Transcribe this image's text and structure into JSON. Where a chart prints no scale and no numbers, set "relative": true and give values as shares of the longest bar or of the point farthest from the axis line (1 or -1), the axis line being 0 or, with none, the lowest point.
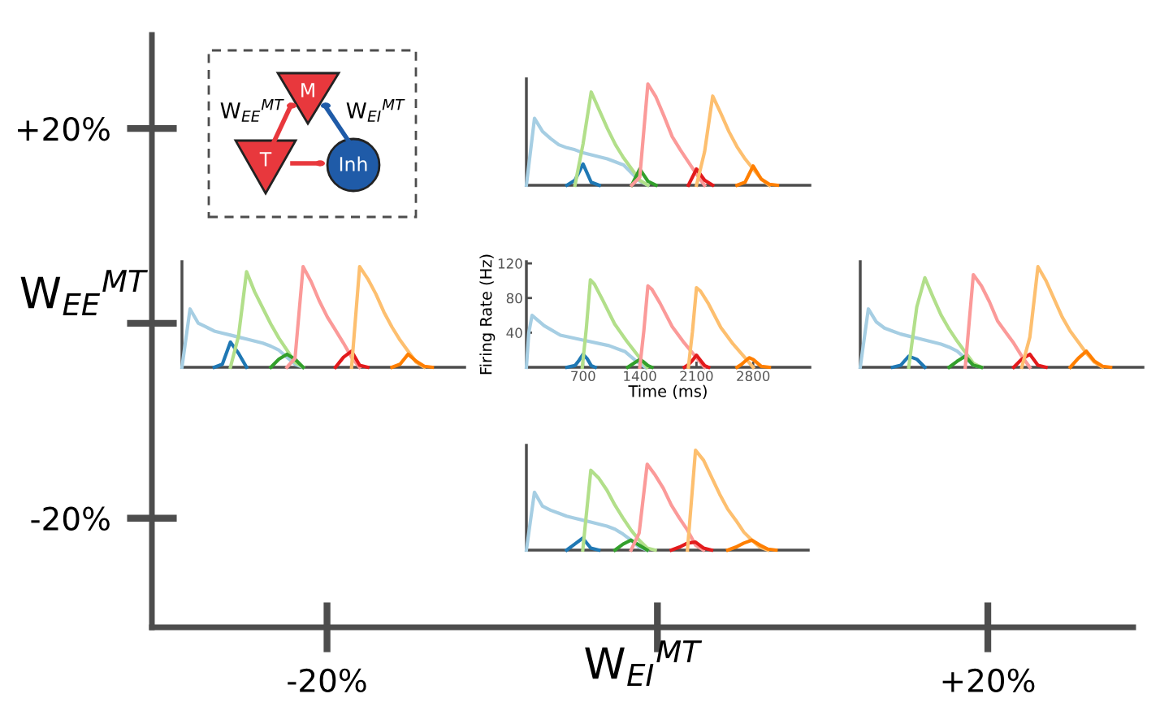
{
  "chart_data": [
    {
      "type": "line",
      "relative": true,
      "categories": [
        null,
        null,
        null,
        null,
        null,
        null,
        null,
        null,
        null,
        null,
        null,
        null,
        null,
        null,
        null,
        null,
        null,
        null,
        null,
        null,
        null,
        null,
        null,
        null,
        null,
        null,
        null,
        null,
        null,
        null,
        null,
        null,
        null,
        null,
        null,
        null
      ],
      "series": [
        {
          "color": "#a6cee3",
          "values": [
            0,
            0.66,
            0.53,
            0.46,
            0.4,
            0.37,
            0.35,
            0.32,
            0.3,
            0.28,
            0.26,
            0.23,
            0.2,
            0.12,
            0.04,
            0,
            null,
            null,
            null,
            null,
            null,
            null,
            null,
            null,
            null,
            null,
            null,
            null,
            null,
            null,
            null,
            null,
            null,
            null,
            null,
            null
          ]
        },
        {
          "color": "#1f78b4",
          "values": [
            null,
            null,
            null,
            null,
            null,
            0,
            0.05,
            0.21,
            0.03,
            0,
            null,
            null,
            null,
            null,
            null,
            null,
            null,
            null,
            null,
            null,
            null,
            null,
            null,
            null,
            null,
            null,
            null,
            null,
            null,
            null,
            null,
            null,
            null,
            null,
            null,
            null
          ]
        },
        {
          "color": "#b2df8a",
          "values": [
            null,
            null,
            null,
            null,
            null,
            null,
            0,
            0.41,
            0.92,
            0.74,
            0.56,
            0.4,
            0.27,
            0.16,
            0.05,
            0,
            null,
            null,
            null,
            null,
            null,
            null,
            null,
            null,
            null,
            null,
            null,
            null,
            null,
            null,
            null,
            null,
            null,
            null,
            null,
            null
          ]
        },
        {
          "color": "#33a02c",
          "values": [
            null,
            null,
            null,
            null,
            null,
            null,
            null,
            null,
            null,
            null,
            null,
            null,
            null,
            0,
            0.16,
            0.04,
            0,
            null,
            null,
            null,
            null,
            null,
            null,
            null,
            null,
            null,
            null,
            null,
            null,
            null,
            null,
            null,
            null,
            null,
            null,
            null
          ]
        },
        {
          "color": "#fb9a99",
          "values": [
            null,
            null,
            null,
            null,
            null,
            null,
            null,
            null,
            null,
            null,
            null,
            null,
            null,
            0,
            0.08,
            1,
            0.87,
            0.68,
            0.48,
            0.35,
            0.23,
            0.11,
            0,
            null,
            null,
            null,
            null,
            null,
            null,
            null,
            null,
            null,
            null,
            null,
            null,
            null
          ]
        },
        {
          "color": "#e31a1c",
          "values": [
            null,
            null,
            null,
            null,
            null,
            null,
            null,
            null,
            null,
            null,
            null,
            null,
            null,
            null,
            null,
            null,
            null,
            null,
            null,
            null,
            0,
            0.16,
            0.05,
            0,
            null,
            null,
            null,
            null,
            null,
            null,
            null,
            null,
            null,
            null,
            null,
            null
          ]
        },
        {
          "color": "#fdbf6f",
          "values": [
            null,
            null,
            null,
            null,
            null,
            null,
            null,
            null,
            null,
            null,
            null,
            null,
            null,
            null,
            null,
            null,
            null,
            null,
            null,
            null,
            null,
            0,
            0.33,
            0.88,
            0.71,
            0.53,
            0.38,
            0.26,
            0.16,
            0.06,
            0,
            null,
            null,
            null,
            null,
            null
          ]
        },
        {
          "color": "#ff7f00",
          "values": [
            null,
            null,
            null,
            null,
            null,
            null,
            null,
            null,
            null,
            null,
            null,
            null,
            null,
            null,
            null,
            null,
            null,
            null,
            null,
            null,
            null,
            null,
            null,
            null,
            null,
            null,
            0,
            0.03,
            0.19,
            0.06,
            0.01,
            0,
            null,
            null,
            null,
            null
          ]
        }
      ]
    },
    {
      "type": "line",
      "relative": true,
      "categories": [
        null,
        null,
        null,
        null,
        null,
        null,
        null,
        null,
        null,
        null,
        null,
        null,
        null,
        null,
        null,
        null,
        null,
        null,
        null,
        null,
        null,
        null,
        null,
        null,
        null,
        null,
        null,
        null,
        null,
        null,
        null,
        null,
        null,
        null,
        null,
        null
      ],
      "series": [
        {
          "color": "#a6cee3",
          "values": [
            0,
            0.58,
            0.44,
            0.4,
            0.36,
            0.34,
            0.32,
            0.3,
            0.28,
            0.26,
            0.24,
            0.21,
            0.17,
            0.1,
            0.03,
            0,
            null,
            null,
            null,
            null,
            null,
            null,
            null,
            null,
            null,
            null,
            null,
            null,
            null,
            null,
            null,
            null,
            null,
            null,
            null,
            null
          ]
        },
        {
          "color": "#1f78b4",
          "values": [
            null,
            null,
            null,
            null,
            0,
            0.03,
            0.25,
            0.14,
            0,
            null,
            null,
            null,
            null,
            null,
            null,
            null,
            null,
            null,
            null,
            null,
            null,
            null,
            null,
            null,
            null,
            null,
            null,
            null,
            null,
            null,
            null,
            null,
            null,
            null,
            null,
            null
          ]
        },
        {
          "color": "#b2df8a",
          "values": [
            null,
            null,
            null,
            null,
            null,
            null,
            0,
            0.31,
            0.95,
            0.75,
            0.59,
            0.43,
            0.29,
            0.17,
            0.05,
            0,
            null,
            null,
            null,
            null,
            null,
            null,
            null,
            null,
            null,
            null,
            null,
            null,
            null,
            null,
            null,
            null,
            null,
            null,
            null,
            null
          ]
        },
        {
          "color": "#33a02c",
          "values": [
            null,
            null,
            null,
            null,
            null,
            null,
            null,
            null,
            null,
            null,
            null,
            0,
            0.08,
            0.13,
            0.08,
            0,
            null,
            null,
            null,
            null,
            null,
            null,
            null,
            null,
            null,
            null,
            null,
            null,
            null,
            null,
            null,
            null,
            null,
            null,
            null,
            null
          ]
        },
        {
          "color": "#fb9a99",
          "values": [
            null,
            null,
            null,
            null,
            null,
            null,
            null,
            null,
            null,
            null,
            null,
            null,
            null,
            0,
            0.09,
            1,
            0.85,
            0.66,
            0.5,
            0.37,
            0.24,
            0.1,
            0,
            null,
            null,
            null,
            null,
            null,
            null,
            null,
            null,
            null,
            null,
            null,
            null,
            null
          ]
        },
        {
          "color": "#e31a1c",
          "values": [
            null,
            null,
            null,
            null,
            null,
            null,
            null,
            null,
            null,
            null,
            null,
            null,
            null,
            null,
            null,
            null,
            null,
            null,
            null,
            0,
            0.1,
            0.16,
            0.02,
            0,
            null,
            null,
            null,
            null,
            null,
            null,
            null,
            null,
            null,
            null,
            null,
            null
          ]
        },
        {
          "color": "#fdbf6f",
          "values": [
            null,
            null,
            null,
            null,
            null,
            null,
            null,
            null,
            null,
            null,
            null,
            null,
            null,
            null,
            null,
            null,
            null,
            null,
            null,
            null,
            null,
            0,
            1,
            0.88,
            0.73,
            0.55,
            0.4,
            0.27,
            0.16,
            0.05,
            0,
            null,
            null,
            null,
            null,
            null
          ]
        },
        {
          "color": "#ff7f00",
          "values": [
            null,
            null,
            null,
            null,
            null,
            null,
            null,
            null,
            null,
            null,
            null,
            null,
            null,
            null,
            null,
            null,
            null,
            null,
            null,
            null,
            null,
            null,
            null,
            null,
            null,
            null,
            0,
            0.03,
            0.13,
            0.06,
            0.01,
            0,
            null,
            null,
            null,
            null
          ]
        }
      ]
    },
    {
      "type": "line",
      "xlim": [
        0,
        3500
      ],
      "ylim": [
        0,
        122
      ],
      "xticks": [
        700,
        1400,
        2100,
        2800
      ],
      "yticks": [
        40,
        80,
        120
      ],
      "xlabel": "Time (ms)",
      "ylabel": "Firing Rate (Hz)",
      "series": [
        {
          "color": "#a6cee3",
          "x": [
            0,
            30,
            70,
            220,
            420,
            720,
            1020,
            1220,
            1370,
            1470
          ],
          "values": [
            0,
            40,
            60,
            48,
            37,
            31,
            25,
            18,
            6,
            0
          ]
        },
        {
          "color": "#1f78b4",
          "x": [
            500,
            600,
            650,
            700,
            750,
            800,
            850
          ],
          "values": [
            0,
            2,
            8,
            15,
            10,
            2,
            0
          ]
        },
        {
          "color": "#b2df8a",
          "x": [
            690,
            740,
            790,
            840,
            940,
            1090,
            1240,
            1390,
            1490
          ],
          "values": [
            0,
            45,
            101,
            96,
            78,
            50,
            30,
            12,
            0
          ]
        },
        {
          "color": "#33a02c",
          "x": [
            1250,
            1300,
            1350,
            1400,
            1450,
            1500,
            1550
          ],
          "values": [
            0,
            3,
            6,
            9,
            6,
            2,
            0
          ]
        },
        {
          "color": "#fb9a99",
          "x": [
            1400,
            1450,
            1500,
            1550,
            1650,
            1800,
            1950,
            2100,
            2200
          ],
          "values": [
            0,
            42,
            94,
            90,
            74,
            47,
            28,
            11,
            0
          ]
        },
        {
          "color": "#e31a1c",
          "x": [
            1950,
            2000,
            2050,
            2100,
            2150,
            2200,
            2250
          ],
          "values": [
            0,
            3,
            8,
            14,
            8,
            2,
            0
          ]
        },
        {
          "color": "#fdbf6f",
          "x": [
            2000,
            2050,
            2100,
            2150,
            2250,
            2400,
            2550,
            2700,
            2800
          ],
          "values": [
            0,
            41,
            92,
            88,
            73,
            46,
            27,
            11,
            0
          ]
        },
        {
          "color": "#ff7f00",
          "x": [
            2600,
            2650,
            2700,
            2750,
            2800,
            2850,
            2900,
            3000
          ],
          "values": [
            0,
            3,
            7,
            11,
            9,
            5,
            1,
            0
          ]
        }
      ]
    },
    {
      "type": "line",
      "relative": true,
      "categories": [
        null,
        null,
        null,
        null,
        null,
        null,
        null,
        null,
        null,
        null,
        null,
        null,
        null,
        null,
        null,
        null,
        null,
        null,
        null,
        null,
        null,
        null,
        null,
        null,
        null,
        null,
        null,
        null,
        null,
        null,
        null,
        null,
        null,
        null,
        null,
        null
      ],
      "series": [
        {
          "color": "#a6cee3",
          "values": [
            0,
            0.58,
            0.45,
            0.39,
            0.36,
            0.33,
            0.31,
            0.29,
            0.27,
            0.25,
            0.23,
            0.2,
            0.16,
            0.09,
            0.02,
            0,
            null,
            null,
            null,
            null,
            null,
            null,
            null,
            null,
            null,
            null,
            null,
            null,
            null,
            null,
            null,
            null,
            null,
            null,
            null,
            null
          ]
        },
        {
          "color": "#1f78b4",
          "values": [
            null,
            null,
            null,
            null,
            0,
            0.02,
            0.11,
            0.08,
            0,
            null,
            null,
            null,
            null,
            null,
            null,
            null,
            null,
            null,
            null,
            null,
            null,
            null,
            null,
            null,
            null,
            null,
            null,
            null,
            null,
            null,
            null,
            null,
            null,
            null,
            null,
            null
          ]
        },
        {
          "color": "#b2df8a",
          "values": [
            null,
            null,
            null,
            null,
            null,
            null,
            0,
            0.6,
            0.89,
            0.7,
            0.52,
            0.38,
            0.26,
            0.15,
            0.04,
            0,
            null,
            null,
            null,
            null,
            null,
            null,
            null,
            null,
            null,
            null,
            null,
            null,
            null,
            null,
            null,
            null,
            null,
            null,
            null,
            null
          ]
        },
        {
          "color": "#33a02c",
          "values": [
            null,
            null,
            null,
            null,
            null,
            null,
            null,
            null,
            null,
            null,
            null,
            0,
            0.06,
            0.11,
            0.02,
            0,
            null,
            null,
            null,
            null,
            null,
            null,
            null,
            null,
            null,
            null,
            null,
            null,
            null,
            null,
            null,
            null,
            null,
            null,
            null,
            null
          ]
        },
        {
          "color": "#fb9a99",
          "values": [
            null,
            null,
            null,
            null,
            null,
            null,
            null,
            null,
            null,
            null,
            null,
            null,
            null,
            0,
            0.92,
            0.81,
            0.65,
            0.46,
            0.35,
            0.24,
            0.11,
            0,
            null,
            null,
            null,
            null,
            null,
            null,
            null,
            null,
            null,
            null,
            null,
            null,
            null,
            null
          ]
        },
        {
          "color": "#e31a1c",
          "values": [
            null,
            null,
            null,
            null,
            null,
            null,
            null,
            null,
            null,
            null,
            null,
            null,
            null,
            null,
            null,
            null,
            null,
            null,
            null,
            0,
            0.08,
            0.13,
            0.02,
            0,
            null,
            null,
            null,
            null,
            null,
            null,
            null,
            null,
            null,
            null,
            null,
            null
          ]
        },
        {
          "color": "#fdbf6f",
          "values": [
            null,
            null,
            null,
            null,
            null,
            null,
            null,
            null,
            null,
            null,
            null,
            null,
            null,
            null,
            null,
            null,
            null,
            null,
            null,
            null,
            0,
            0.3,
            1,
            0.86,
            0.68,
            0.5,
            0.36,
            0.25,
            0.14,
            0.05,
            0,
            null,
            null,
            null,
            null,
            null
          ]
        },
        {
          "color": "#ff7f00",
          "values": [
            null,
            null,
            null,
            null,
            null,
            null,
            null,
            null,
            null,
            null,
            null,
            null,
            null,
            null,
            null,
            null,
            null,
            null,
            null,
            null,
            null,
            null,
            null,
            null,
            null,
            null,
            0,
            0.09,
            0.16,
            0.06,
            0.01,
            0,
            null,
            null,
            null,
            null
          ]
        }
      ]
    },
    {
      "type": "line",
      "relative": true,
      "categories": [
        null,
        null,
        null,
        null,
        null,
        null,
        null,
        null,
        null,
        null,
        null,
        null,
        null,
        null,
        null,
        null,
        null,
        null,
        null,
        null,
        null,
        null,
        null,
        null,
        null,
        null,
        null,
        null,
        null,
        null,
        null,
        null,
        null,
        null,
        null,
        null
      ],
      "series": [
        {
          "color": "#a6cee3",
          "values": [
            0,
            0.58,
            0.44,
            0.4,
            0.37,
            0.34,
            0.32,
            0.3,
            0.28,
            0.26,
            0.24,
            0.21,
            0.16,
            0.1,
            0.03,
            0,
            null,
            null,
            null,
            null,
            null,
            null,
            null,
            null,
            null,
            null,
            null,
            null,
            null,
            null,
            null,
            null,
            null,
            null,
            null,
            null
          ]
        },
        {
          "color": "#1f78b4",
          "values": [
            null,
            null,
            null,
            null,
            null,
            0,
            0.06,
            0.12,
            0.02,
            0,
            null,
            null,
            null,
            null,
            null,
            null,
            null,
            null,
            null,
            null,
            null,
            null,
            null,
            null,
            null,
            null,
            null,
            null,
            null,
            null,
            null,
            null,
            null,
            null,
            null,
            null
          ]
        },
        {
          "color": "#b2df8a",
          "values": [
            null,
            null,
            null,
            null,
            null,
            null,
            null,
            0,
            0.8,
            0.72,
            0.6,
            0.45,
            0.32,
            0.2,
            0.1,
            0.02,
            0,
            null,
            null,
            null,
            null,
            null,
            null,
            null,
            null,
            null,
            null,
            null,
            null,
            null,
            null,
            null,
            null,
            null,
            null,
            null
          ]
        },
        {
          "color": "#33a02c",
          "values": [
            null,
            null,
            null,
            null,
            null,
            null,
            null,
            null,
            null,
            null,
            null,
            0,
            0.06,
            0.1,
            0.05,
            0,
            null,
            null,
            null,
            null,
            null,
            null,
            null,
            null,
            null,
            null,
            null,
            null,
            null,
            null,
            null,
            null,
            null,
            null,
            null,
            null
          ]
        },
        {
          "color": "#fb9a99",
          "values": [
            null,
            null,
            null,
            null,
            null,
            null,
            null,
            null,
            null,
            null,
            null,
            null,
            null,
            0,
            0.17,
            0.86,
            0.75,
            0.62,
            0.45,
            0.32,
            0.2,
            0.05,
            0,
            null,
            null,
            null,
            null,
            null,
            null,
            null,
            null,
            null,
            null,
            null,
            null,
            null
          ]
        },
        {
          "color": "#e31a1c",
          "values": [
            null,
            null,
            null,
            null,
            null,
            null,
            null,
            null,
            null,
            null,
            null,
            null,
            null,
            null,
            null,
            null,
            null,
            null,
            0,
            0.03,
            0.07,
            0.08,
            0.02,
            0,
            null,
            null,
            null,
            null,
            null,
            null,
            null,
            null,
            null,
            null,
            null,
            null
          ]
        },
        {
          "color": "#fdbf6f",
          "values": [
            null,
            null,
            null,
            null,
            null,
            null,
            null,
            null,
            null,
            null,
            null,
            null,
            null,
            null,
            null,
            null,
            null,
            null,
            null,
            null,
            0,
            1,
            0.9,
            0.73,
            0.56,
            0.41,
            0.3,
            0.18,
            0.1,
            0.03,
            0,
            null,
            null,
            null,
            null,
            null
          ]
        },
        {
          "color": "#ff7f00",
          "values": [
            null,
            null,
            null,
            null,
            null,
            null,
            null,
            null,
            null,
            null,
            null,
            null,
            null,
            null,
            null,
            null,
            null,
            null,
            null,
            null,
            null,
            null,
            null,
            null,
            null,
            0,
            0.03,
            0.07,
            0.1,
            0.05,
            0.01,
            0,
            null,
            null,
            null,
            null
          ]
        }
      ]
    },
    {
      "type": "other",
      "xlabel": "W$_{EI}$$^{MT}$",
      "ylabel": "W$_{EE}$$^{MT}$",
      "categories": [
        "-20%",
        null,
        "+20%"
      ],
      "y_categories": [
        "+20%",
        null,
        "-20%"
      ],
      "annotations": [
        "M",
        "T",
        "Inh",
        "W$_{EE}$$^{MT}$",
        "W$_{EI}$$^{MT}$"
      ]
    }
  ]
}
